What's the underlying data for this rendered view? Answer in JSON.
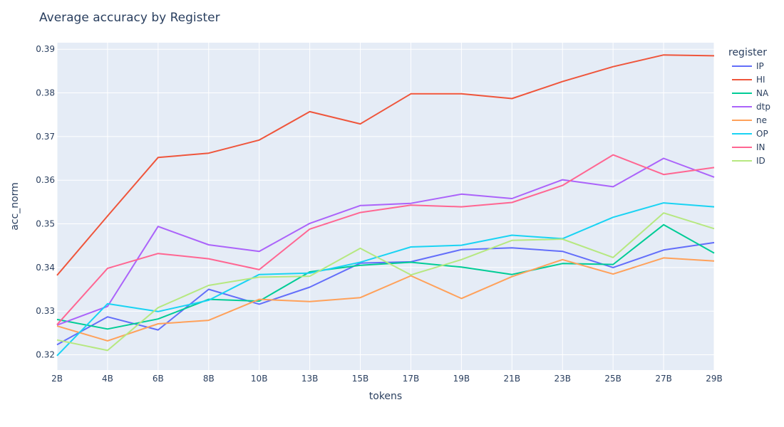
{
  "chart_data": {
    "type": "line",
    "title": "Average accuracy by Register",
    "xlabel": "tokens",
    "ylabel": "acc_norm",
    "legend_title": "register",
    "legend_position": "right",
    "grid": true,
    "x": [
      "2B",
      "4B",
      "6B",
      "8B",
      "10B",
      "13B",
      "15B",
      "17B",
      "19B",
      "21B",
      "23B",
      "25B",
      "27B",
      "29B"
    ],
    "ylim": [
      0.3165,
      0.3915
    ],
    "yticks": [
      0.32,
      0.33,
      0.34,
      0.35,
      0.36,
      0.37,
      0.38,
      0.39
    ],
    "series": [
      {
        "name": "IP",
        "color": "#636efa",
        "values": [
          0.3223,
          0.3287,
          0.3257,
          0.335,
          0.3316,
          0.3355,
          0.341,
          0.3413,
          0.3441,
          0.3445,
          0.3437,
          0.34,
          0.344,
          0.3457
        ]
      },
      {
        "name": "HI",
        "color": "#ef553b",
        "values": [
          0.3382,
          0.3518,
          0.3652,
          0.3662,
          0.3692,
          0.3757,
          0.3729,
          0.3798,
          0.3798,
          0.3787,
          0.3826,
          0.386,
          0.3887,
          0.3885
        ]
      },
      {
        "name": "NA",
        "color": "#00cc96",
        "values": [
          0.3281,
          0.3259,
          0.3282,
          0.3327,
          0.3323,
          0.339,
          0.3405,
          0.3412,
          0.3401,
          0.3384,
          0.3409,
          0.3407,
          0.3498,
          0.3433
        ]
      },
      {
        "name": "dtp",
        "color": "#ab63fa",
        "values": [
          0.3268,
          0.3311,
          0.3494,
          0.3452,
          0.3437,
          0.3501,
          0.3542,
          0.3547,
          0.3568,
          0.3558,
          0.3601,
          0.3585,
          0.365,
          0.3607
        ]
      },
      {
        "name": "ne",
        "color": "#ffa15a",
        "values": [
          0.3266,
          0.3232,
          0.3271,
          0.3279,
          0.3327,
          0.3322,
          0.3331,
          0.3381,
          0.3329,
          0.3379,
          0.3418,
          0.3385,
          0.3422,
          0.3415
        ]
      },
      {
        "name": "OP",
        "color": "#19d3f3",
        "values": [
          0.3198,
          0.3317,
          0.3299,
          0.3325,
          0.3384,
          0.3387,
          0.3412,
          0.3447,
          0.3451,
          0.3474,
          0.3466,
          0.3515,
          0.3548,
          0.3539
        ]
      },
      {
        "name": "IN",
        "color": "#ff6692",
        "values": [
          0.3269,
          0.3398,
          0.3432,
          0.342,
          0.3395,
          0.3488,
          0.3526,
          0.3543,
          0.3539,
          0.3549,
          0.3588,
          0.3658,
          0.3613,
          0.3629
        ]
      },
      {
        "name": "ID",
        "color": "#b6e880",
        "values": [
          0.3234,
          0.321,
          0.3308,
          0.3359,
          0.3378,
          0.338,
          0.3444,
          0.3383,
          0.3418,
          0.3462,
          0.3465,
          0.3423,
          0.3525,
          0.3489
        ]
      }
    ]
  }
}
